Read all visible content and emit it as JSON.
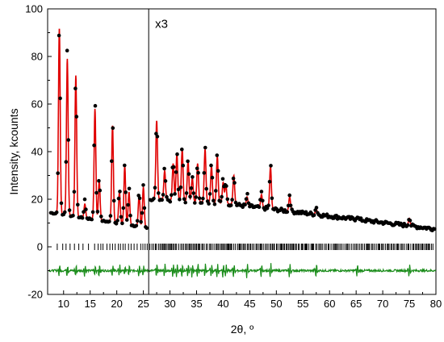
{
  "chart_data": {
    "type": "line",
    "title": "",
    "xlabel": "2θ, º",
    "ylabel": "Intensity, kcounts",
    "xlim": [
      7,
      80
    ],
    "ylim": [
      -20,
      100
    ],
    "x_ticks": [
      10,
      15,
      20,
      25,
      30,
      35,
      40,
      45,
      50,
      55,
      60,
      65,
      70,
      75,
      80
    ],
    "y_ticks": [
      -20,
      0,
      20,
      40,
      60,
      80,
      100
    ],
    "annotations": [
      {
        "text": "x3",
        "x": 27.2,
        "y": 92
      }
    ],
    "divider_x": 26,
    "legend": "none",
    "grid": false,
    "series": [
      {
        "kind": "observed",
        "color": "#000000",
        "marker": "circle",
        "peaks": [
          [
            9.2,
            94
          ],
          [
            10.7,
            83
          ],
          [
            12.3,
            74
          ],
          [
            14.0,
            20
          ],
          [
            15.9,
            63
          ],
          [
            16.7,
            30
          ],
          [
            19.2,
            53
          ],
          [
            20.5,
            25
          ],
          [
            21.5,
            35
          ],
          [
            22.3,
            25
          ],
          [
            24.2,
            24
          ],
          [
            25.0,
            26
          ],
          [
            27.5,
            54
          ],
          [
            29.0,
            33
          ],
          [
            30.6,
            37
          ],
          [
            31.3,
            40
          ],
          [
            32.3,
            43
          ],
          [
            33.4,
            38
          ],
          [
            34.2,
            30
          ],
          [
            35.2,
            36
          ],
          [
            36.6,
            43
          ],
          [
            37.8,
            36
          ],
          [
            38.9,
            40
          ],
          [
            40.0,
            29
          ],
          [
            40.5,
            28
          ],
          [
            42.0,
            31
          ],
          [
            44.5,
            22
          ],
          [
            47.2,
            23
          ],
          [
            48.9,
            35
          ],
          [
            52.5,
            22
          ],
          [
            57.5,
            17
          ],
          [
            65.2,
            13
          ],
          [
            75.0,
            12.5
          ]
        ]
      },
      {
        "kind": "calculated",
        "color": "#e00000",
        "peaks": [
          [
            9.2,
            92
          ],
          [
            10.7,
            79
          ],
          [
            12.3,
            72
          ],
          [
            14.0,
            18
          ],
          [
            15.9,
            58
          ],
          [
            16.7,
            28
          ],
          [
            19.2,
            51
          ],
          [
            20.5,
            23
          ],
          [
            21.5,
            34
          ],
          [
            22.3,
            23
          ],
          [
            24.2,
            22
          ],
          [
            25.0,
            25
          ],
          [
            27.5,
            53
          ],
          [
            29.0,
            32
          ],
          [
            30.6,
            35
          ],
          [
            31.3,
            39
          ],
          [
            32.3,
            41
          ],
          [
            33.4,
            36
          ],
          [
            34.2,
            29
          ],
          [
            35.2,
            35
          ],
          [
            36.6,
            41
          ],
          [
            37.8,
            34
          ],
          [
            38.9,
            38
          ],
          [
            40.0,
            27
          ],
          [
            40.5,
            26
          ],
          [
            42.0,
            30
          ],
          [
            44.5,
            21
          ],
          [
            47.2,
            22
          ],
          [
            48.9,
            34
          ],
          [
            52.5,
            21
          ],
          [
            57.5,
            16
          ],
          [
            65.2,
            12.5
          ],
          [
            75.0,
            12
          ]
        ]
      },
      {
        "kind": "difference",
        "color": "#1a8c1a",
        "baseline": -10
      },
      {
        "kind": "bragg_positions",
        "color": "#000000",
        "y": 0
      }
    ]
  }
}
